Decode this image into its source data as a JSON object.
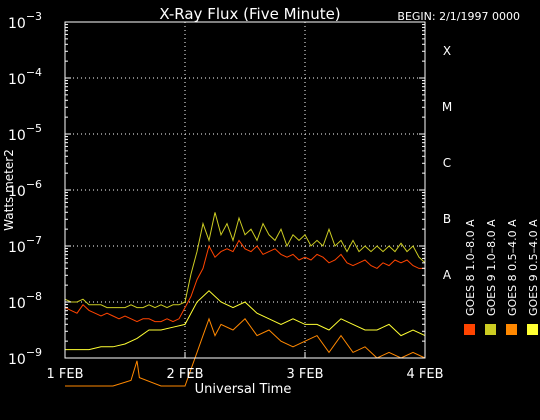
{
  "chart_data": {
    "type": "line",
    "title": "X-Ray Flux (Five Minute)",
    "begin_label": "BEGIN: 2/1/1997 0000",
    "xlabel": "Universal Time",
    "ylabel": "Watts meter2",
    "x_range_days": [
      0,
      3
    ],
    "x_ticks": [
      {
        "day": 0,
        "label": "1 FEB"
      },
      {
        "day": 1,
        "label": "2 FEB"
      },
      {
        "day": 2,
        "label": "3 FEB"
      },
      {
        "day": 3,
        "label": "4 FEB"
      }
    ],
    "y_scale": "log",
    "y_range_exponent": [
      -9,
      -3
    ],
    "y_ticks": [
      {
        "exp": -9,
        "label": "10",
        "sup": "−9"
      },
      {
        "exp": -8,
        "label": "10",
        "sup": "−8"
      },
      {
        "exp": -7,
        "label": "10",
        "sup": "−7"
      },
      {
        "exp": -6,
        "label": "10",
        "sup": "−6"
      },
      {
        "exp": -5,
        "label": "10",
        "sup": "−5"
      },
      {
        "exp": -4,
        "label": "10",
        "sup": "−4"
      },
      {
        "exp": -3,
        "label": "10",
        "sup": "−3"
      }
    ],
    "flare_classes": [
      {
        "exp": -8,
        "label": "A"
      },
      {
        "exp": -7,
        "label": "B"
      },
      {
        "exp": -6,
        "label": "C"
      },
      {
        "exp": -5,
        "label": "M"
      },
      {
        "exp": -4,
        "label": "X"
      }
    ],
    "grid": "dotted at class levels and day boundaries",
    "legend_placement": "right, vertical",
    "series": [
      {
        "name": "GOES 8  1.0–8.0 A",
        "color": "#ff4400",
        "points": [
          [
            0.0,
            -8.1
          ],
          [
            0.05,
            -8.15
          ],
          [
            0.1,
            -8.2
          ],
          [
            0.15,
            -8.05
          ],
          [
            0.2,
            -8.15
          ],
          [
            0.25,
            -8.2
          ],
          [
            0.3,
            -8.25
          ],
          [
            0.35,
            -8.2
          ],
          [
            0.4,
            -8.25
          ],
          [
            0.45,
            -8.3
          ],
          [
            0.5,
            -8.25
          ],
          [
            0.55,
            -8.3
          ],
          [
            0.6,
            -8.35
          ],
          [
            0.65,
            -8.3
          ],
          [
            0.7,
            -8.3
          ],
          [
            0.75,
            -8.35
          ],
          [
            0.8,
            -8.35
          ],
          [
            0.85,
            -8.3
          ],
          [
            0.9,
            -8.35
          ],
          [
            0.95,
            -8.3
          ],
          [
            1.0,
            -8.1
          ],
          [
            1.05,
            -7.9
          ],
          [
            1.1,
            -7.6
          ],
          [
            1.15,
            -7.4
          ],
          [
            1.2,
            -7.0
          ],
          [
            1.25,
            -7.2
          ],
          [
            1.3,
            -7.1
          ],
          [
            1.35,
            -7.05
          ],
          [
            1.4,
            -7.1
          ],
          [
            1.45,
            -6.9
          ],
          [
            1.5,
            -7.05
          ],
          [
            1.55,
            -7.1
          ],
          [
            1.6,
            -7.0
          ],
          [
            1.65,
            -7.15
          ],
          [
            1.7,
            -7.1
          ],
          [
            1.75,
            -7.05
          ],
          [
            1.8,
            -7.15
          ],
          [
            1.85,
            -7.2
          ],
          [
            1.9,
            -7.15
          ],
          [
            1.95,
            -7.25
          ],
          [
            2.0,
            -7.2
          ],
          [
            2.05,
            -7.25
          ],
          [
            2.1,
            -7.15
          ],
          [
            2.15,
            -7.2
          ],
          [
            2.2,
            -7.3
          ],
          [
            2.25,
            -7.25
          ],
          [
            2.3,
            -7.15
          ],
          [
            2.35,
            -7.3
          ],
          [
            2.4,
            -7.35
          ],
          [
            2.45,
            -7.3
          ],
          [
            2.5,
            -7.25
          ],
          [
            2.55,
            -7.35
          ],
          [
            2.6,
            -7.4
          ],
          [
            2.65,
            -7.3
          ],
          [
            2.7,
            -7.35
          ],
          [
            2.75,
            -7.25
          ],
          [
            2.8,
            -7.3
          ],
          [
            2.85,
            -7.25
          ],
          [
            2.9,
            -7.35
          ],
          [
            2.95,
            -7.4
          ],
          [
            3.0,
            -7.4
          ]
        ]
      },
      {
        "name": "GOES 8  0.5–4.0 A",
        "color": "#ff8800",
        "points": [
          [
            0.0,
            -9.5
          ],
          [
            0.2,
            -9.5
          ],
          [
            0.4,
            -9.5
          ],
          [
            0.55,
            -9.4
          ],
          [
            0.6,
            -9.05
          ],
          [
            0.62,
            -9.35
          ],
          [
            0.8,
            -9.5
          ],
          [
            1.0,
            -9.5
          ],
          [
            1.1,
            -8.9
          ],
          [
            1.15,
            -8.6
          ],
          [
            1.2,
            -8.3
          ],
          [
            1.25,
            -8.6
          ],
          [
            1.3,
            -8.4
          ],
          [
            1.4,
            -8.5
          ],
          [
            1.5,
            -8.3
          ],
          [
            1.6,
            -8.6
          ],
          [
            1.7,
            -8.5
          ],
          [
            1.8,
            -8.7
          ],
          [
            1.9,
            -8.8
          ],
          [
            2.0,
            -8.7
          ],
          [
            2.1,
            -8.6
          ],
          [
            2.2,
            -8.9
          ],
          [
            2.3,
            -8.6
          ],
          [
            2.4,
            -8.9
          ],
          [
            2.5,
            -8.8
          ],
          [
            2.6,
            -9.0
          ],
          [
            2.7,
            -8.9
          ],
          [
            2.8,
            -9.0
          ],
          [
            2.9,
            -8.9
          ],
          [
            3.0,
            -9.0
          ]
        ]
      },
      {
        "name": "GOES 9  0.5–4.0 A",
        "color": "#ffff33",
        "points": [
          [
            0.0,
            -8.85
          ],
          [
            0.1,
            -8.85
          ],
          [
            0.2,
            -8.85
          ],
          [
            0.3,
            -8.8
          ],
          [
            0.4,
            -8.8
          ],
          [
            0.5,
            -8.75
          ],
          [
            0.6,
            -8.65
          ],
          [
            0.7,
            -8.5
          ],
          [
            0.8,
            -8.5
          ],
          [
            0.9,
            -8.45
          ],
          [
            1.0,
            -8.4
          ],
          [
            1.1,
            -8.0
          ],
          [
            1.2,
            -7.8
          ],
          [
            1.3,
            -8.0
          ],
          [
            1.4,
            -8.1
          ],
          [
            1.5,
            -8.0
          ],
          [
            1.6,
            -8.2
          ],
          [
            1.7,
            -8.3
          ],
          [
            1.8,
            -8.4
          ],
          [
            1.9,
            -8.3
          ],
          [
            2.0,
            -8.4
          ],
          [
            2.1,
            -8.4
          ],
          [
            2.2,
            -8.5
          ],
          [
            2.3,
            -8.3
          ],
          [
            2.4,
            -8.4
          ],
          [
            2.5,
            -8.5
          ],
          [
            2.6,
            -8.5
          ],
          [
            2.7,
            -8.4
          ],
          [
            2.8,
            -8.6
          ],
          [
            2.9,
            -8.5
          ],
          [
            3.0,
            -8.6
          ]
        ]
      },
      {
        "name": "GOES 9  1.0–8.0 A",
        "color": "#cccc22",
        "points": [
          [
            0.0,
            -7.95
          ],
          [
            0.05,
            -8.0
          ],
          [
            0.1,
            -8.0
          ],
          [
            0.15,
            -7.95
          ],
          [
            0.2,
            -8.05
          ],
          [
            0.25,
            -8.05
          ],
          [
            0.3,
            -8.05
          ],
          [
            0.35,
            -8.1
          ],
          [
            0.4,
            -8.1
          ],
          [
            0.45,
            -8.1
          ],
          [
            0.5,
            -8.1
          ],
          [
            0.55,
            -8.05
          ],
          [
            0.6,
            -8.1
          ],
          [
            0.65,
            -8.1
          ],
          [
            0.7,
            -8.05
          ],
          [
            0.75,
            -8.1
          ],
          [
            0.8,
            -8.05
          ],
          [
            0.85,
            -8.1
          ],
          [
            0.9,
            -8.05
          ],
          [
            0.95,
            -8.05
          ],
          [
            1.0,
            -8.0
          ],
          [
            1.05,
            -7.5
          ],
          [
            1.1,
            -7.1
          ],
          [
            1.15,
            -6.6
          ],
          [
            1.2,
            -6.9
          ],
          [
            1.25,
            -6.4
          ],
          [
            1.3,
            -6.8
          ],
          [
            1.35,
            -6.6
          ],
          [
            1.4,
            -6.9
          ],
          [
            1.45,
            -6.5
          ],
          [
            1.5,
            -6.8
          ],
          [
            1.55,
            -6.7
          ],
          [
            1.6,
            -6.9
          ],
          [
            1.65,
            -6.6
          ],
          [
            1.7,
            -6.8
          ],
          [
            1.75,
            -6.9
          ],
          [
            1.8,
            -6.7
          ],
          [
            1.85,
            -7.0
          ],
          [
            1.9,
            -6.8
          ],
          [
            1.95,
            -6.9
          ],
          [
            2.0,
            -6.8
          ],
          [
            2.05,
            -7.0
          ],
          [
            2.1,
            -6.9
          ],
          [
            2.15,
            -7.0
          ],
          [
            2.2,
            -6.7
          ],
          [
            2.25,
            -7.0
          ],
          [
            2.3,
            -6.9
          ],
          [
            2.35,
            -7.1
          ],
          [
            2.4,
            -6.9
          ],
          [
            2.45,
            -7.1
          ],
          [
            2.5,
            -7.0
          ],
          [
            2.55,
            -7.1
          ],
          [
            2.6,
            -7.0
          ],
          [
            2.65,
            -7.1
          ],
          [
            2.7,
            -7.0
          ],
          [
            2.75,
            -7.1
          ],
          [
            2.8,
            -6.95
          ],
          [
            2.85,
            -7.1
          ],
          [
            2.9,
            -7.0
          ],
          [
            2.95,
            -7.2
          ],
          [
            3.0,
            -7.3
          ]
        ]
      }
    ]
  }
}
